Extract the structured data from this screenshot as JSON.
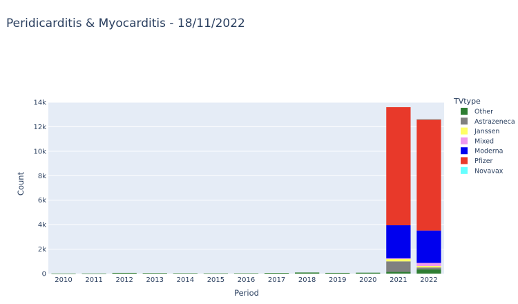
{
  "chart_data": {
    "type": "bar",
    "stacked": true,
    "title": "Peridicarditis & Myocarditis - 18/11/2022",
    "xlabel": "Period",
    "ylabel": "Count",
    "ylim": [
      0,
      14000
    ],
    "yticks": [
      0,
      2000,
      4000,
      6000,
      8000,
      10000,
      12000,
      14000
    ],
    "ytick_labels": [
      "0",
      "2k",
      "4k",
      "6k",
      "8k",
      "10k",
      "12k",
      "14k"
    ],
    "grid": true,
    "legend_title": "TVtype",
    "legend_position": "right",
    "categories": [
      "2010",
      "2011",
      "2012",
      "2013",
      "2014",
      "2015",
      "2016",
      "2017",
      "2018",
      "2019",
      "2020",
      "2021",
      "2022"
    ],
    "series": [
      {
        "name": "Other",
        "color": "#2e7d32",
        "values": [
          10,
          15,
          60,
          45,
          35,
          25,
          30,
          55,
          90,
          60,
          75,
          150,
          350
        ]
      },
      {
        "name": "Astrazeneca",
        "color": "#808080",
        "values": [
          0,
          0,
          0,
          0,
          0,
          0,
          0,
          0,
          0,
          0,
          0,
          850,
          150
        ]
      },
      {
        "name": "Janssen",
        "color": "#ffff66",
        "values": [
          0,
          0,
          0,
          0,
          0,
          0,
          0,
          0,
          0,
          0,
          0,
          200,
          120
        ]
      },
      {
        "name": "Mixed",
        "color": "#ee99ee",
        "values": [
          0,
          0,
          0,
          0,
          0,
          0,
          0,
          0,
          0,
          0,
          0,
          50,
          250
        ]
      },
      {
        "name": "Moderna",
        "color": "#0000ee",
        "values": [
          0,
          0,
          0,
          0,
          0,
          0,
          0,
          0,
          0,
          0,
          0,
          2700,
          2650
        ]
      },
      {
        "name": "Pfizer",
        "color": "#e8392a",
        "values": [
          0,
          0,
          0,
          0,
          0,
          0,
          0,
          0,
          0,
          0,
          0,
          9650,
          9100
        ]
      },
      {
        "name": "Novavax",
        "color": "#66ffff",
        "values": [
          0,
          0,
          0,
          0,
          0,
          0,
          0,
          0,
          0,
          0,
          0,
          0,
          5
        ]
      }
    ]
  }
}
